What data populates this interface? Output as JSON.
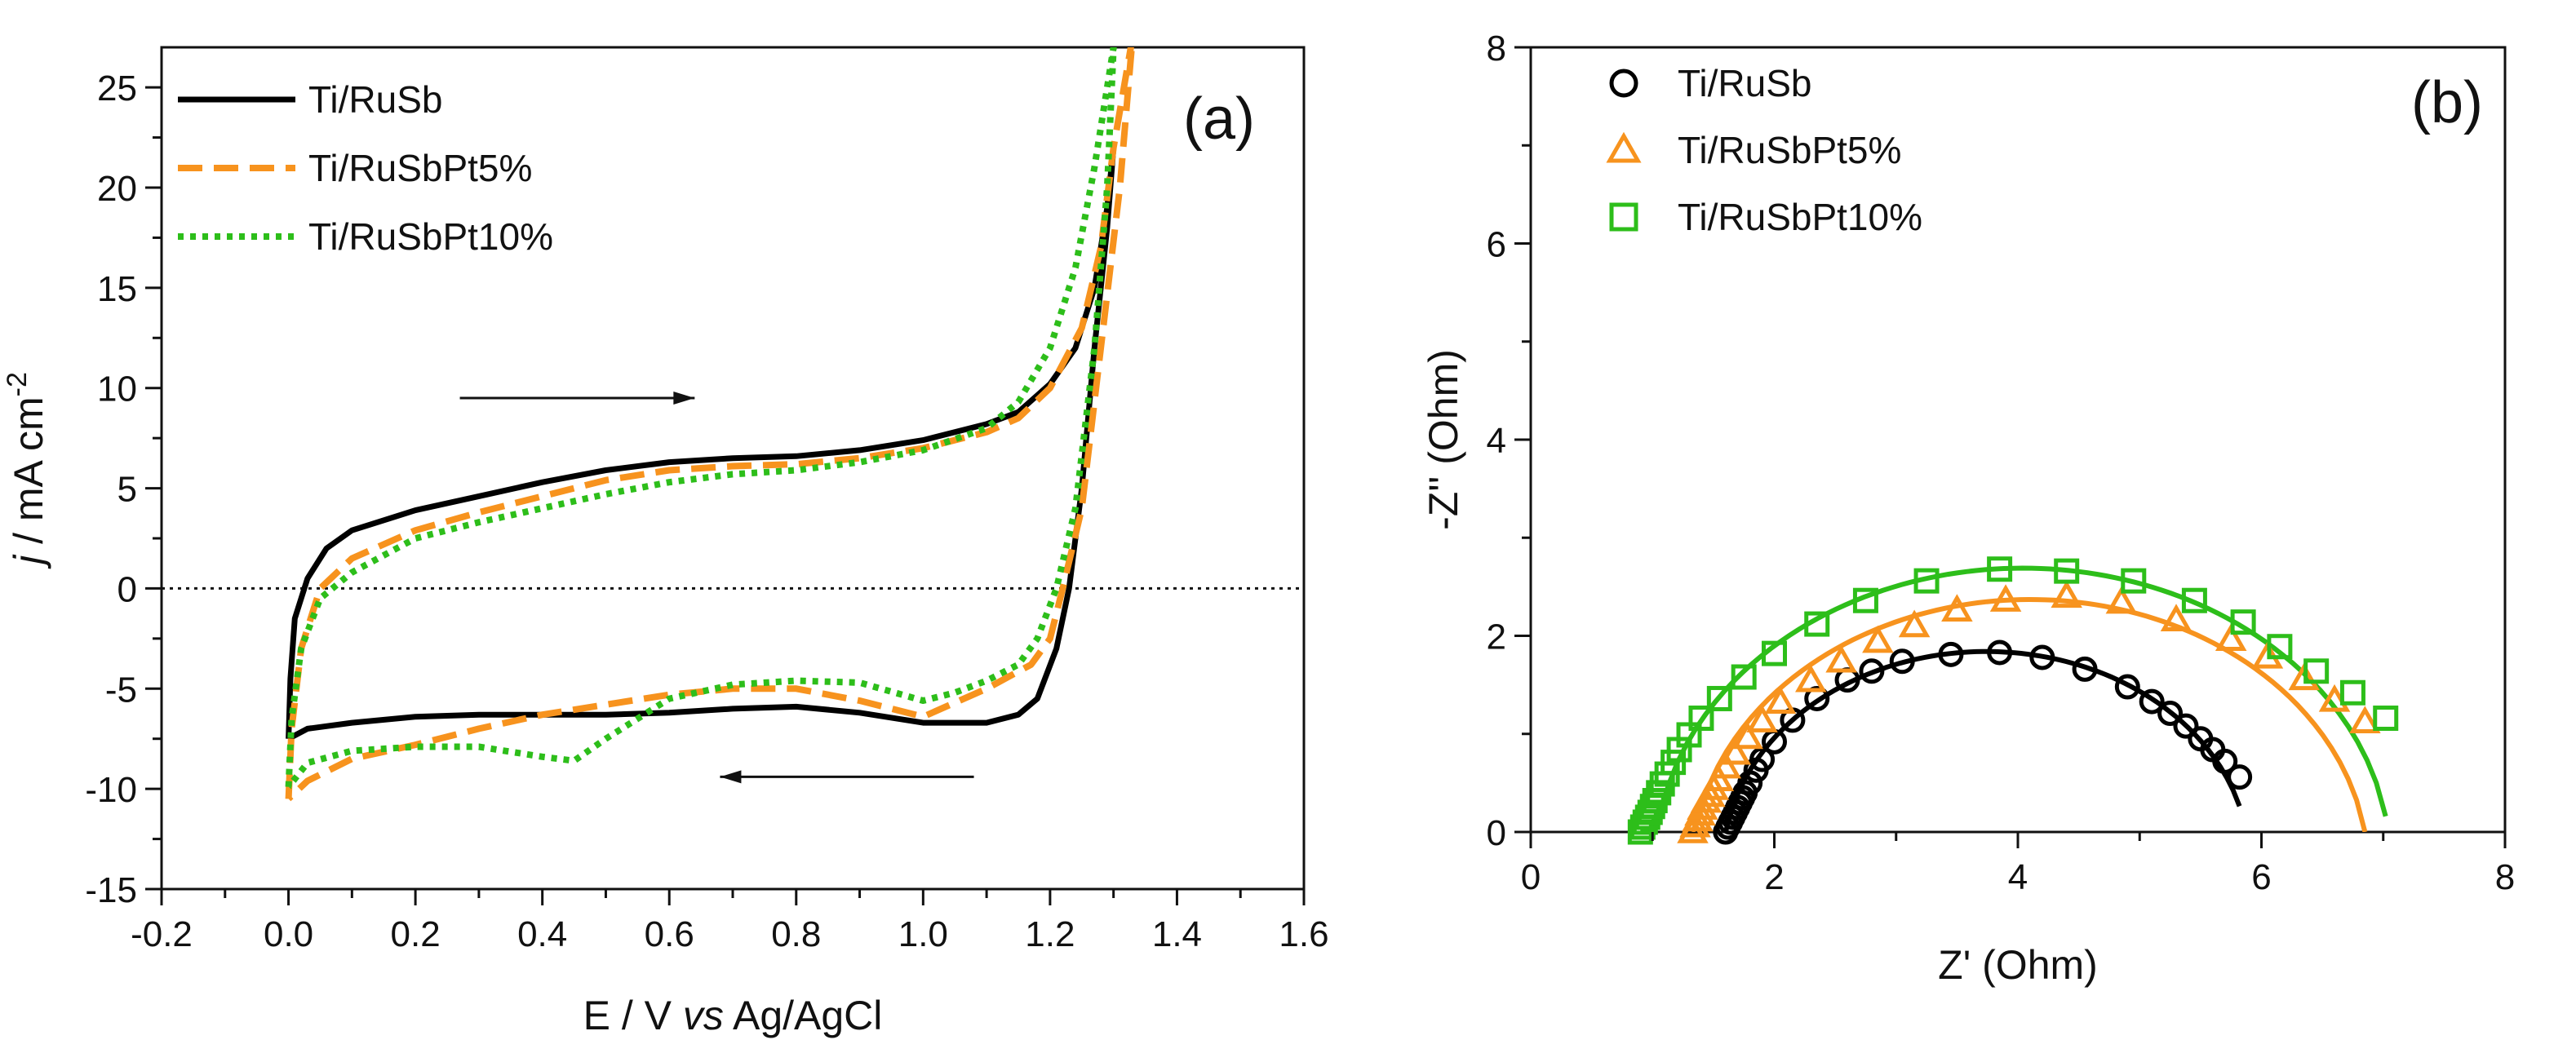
{
  "chart_data": [
    {
      "panel": "a",
      "panel_label": "(a)",
      "type": "line",
      "xlabel_parts": [
        "E / V ",
        "vs",
        " Ag/AgCl"
      ],
      "ylabel_parts": [
        "j",
        " / mA cm",
        "-2"
      ],
      "xlim": [
        -0.2,
        1.6
      ],
      "ylim": [
        -15,
        27
      ],
      "xticks": [
        -0.2,
        0.0,
        0.2,
        0.4,
        0.6,
        0.8,
        1.0,
        1.2,
        1.4,
        1.6
      ],
      "xtick_labels": [
        "-0.2",
        "0.0",
        "0.2",
        "0.4",
        "0.6",
        "0.8",
        "1.0",
        "1.2",
        "1.4",
        "1.6"
      ],
      "yticks": [
        -15,
        -10,
        -5,
        0,
        5,
        10,
        15,
        20,
        25
      ],
      "ytick_labels": [
        "-15",
        "-10",
        "-5",
        "0",
        "5",
        "10",
        "15",
        "20",
        "25"
      ],
      "zero_line": true,
      "arrows": [
        {
          "direction": "right",
          "from": [
            0.27,
            9.5
          ],
          "to": [
            0.64,
            9.5
          ]
        },
        {
          "direction": "left",
          "from": [
            1.08,
            -9.4
          ],
          "to": [
            0.68,
            -9.4
          ]
        }
      ],
      "legend_position": "top-left",
      "series": [
        {
          "name": "Ti/RuSb",
          "color": "#000000",
          "style": "solid",
          "points": [
            [
              0.0,
              -7.5
            ],
            [
              0.003,
              -4.5
            ],
            [
              0.01,
              -1.5
            ],
            [
              0.03,
              0.5
            ],
            [
              0.06,
              2.0
            ],
            [
              0.1,
              2.9
            ],
            [
              0.2,
              3.9
            ],
            [
              0.3,
              4.6
            ],
            [
              0.4,
              5.3
            ],
            [
              0.5,
              5.9
            ],
            [
              0.6,
              6.3
            ],
            [
              0.7,
              6.5
            ],
            [
              0.8,
              6.6
            ],
            [
              0.9,
              6.9
            ],
            [
              1.0,
              7.4
            ],
            [
              1.1,
              8.2
            ],
            [
              1.15,
              8.8
            ],
            [
              1.2,
              10.2
            ],
            [
              1.24,
              12.0
            ],
            [
              1.27,
              15.0
            ],
            [
              1.29,
              19.0
            ],
            [
              1.3,
              22.0
            ],
            [
              1.29,
              18.0
            ],
            [
              1.27,
              12.0
            ],
            [
              1.25,
              5.0
            ],
            [
              1.23,
              0.0
            ],
            [
              1.21,
              -3.0
            ],
            [
              1.18,
              -5.5
            ],
            [
              1.15,
              -6.3
            ],
            [
              1.1,
              -6.7
            ],
            [
              1.0,
              -6.7
            ],
            [
              0.9,
              -6.2
            ],
            [
              0.8,
              -5.9
            ],
            [
              0.7,
              -6.0
            ],
            [
              0.6,
              -6.2
            ],
            [
              0.5,
              -6.3
            ],
            [
              0.4,
              -6.3
            ],
            [
              0.3,
              -6.3
            ],
            [
              0.2,
              -6.4
            ],
            [
              0.1,
              -6.7
            ],
            [
              0.03,
              -7.0
            ],
            [
              0.0,
              -7.5
            ]
          ]
        },
        {
          "name": "Ti/RuSbPt5%",
          "color": "#F7931E",
          "style": "dashed",
          "points": [
            [
              0.0,
              -10.5
            ],
            [
              0.005,
              -7.0
            ],
            [
              0.02,
              -3.0
            ],
            [
              0.05,
              0.0
            ],
            [
              0.1,
              1.5
            ],
            [
              0.2,
              2.9
            ],
            [
              0.3,
              3.8
            ],
            [
              0.4,
              4.6
            ],
            [
              0.5,
              5.4
            ],
            [
              0.6,
              5.9
            ],
            [
              0.7,
              6.1
            ],
            [
              0.8,
              6.2
            ],
            [
              0.9,
              6.5
            ],
            [
              1.0,
              7.0
            ],
            [
              1.1,
              7.8
            ],
            [
              1.15,
              8.5
            ],
            [
              1.2,
              10.0
            ],
            [
              1.25,
              13.0
            ],
            [
              1.28,
              17.0
            ],
            [
              1.3,
              22.0
            ],
            [
              1.33,
              27.5
            ],
            [
              1.31,
              20.0
            ],
            [
              1.28,
              12.0
            ],
            [
              1.25,
              4.0
            ],
            [
              1.22,
              0.0
            ],
            [
              1.2,
              -2.5
            ],
            [
              1.17,
              -3.8
            ],
            [
              1.1,
              -5.0
            ],
            [
              1.0,
              -6.4
            ],
            [
              0.9,
              -5.6
            ],
            [
              0.8,
              -5.0
            ],
            [
              0.7,
              -5.0
            ],
            [
              0.6,
              -5.3
            ],
            [
              0.5,
              -5.8
            ],
            [
              0.4,
              -6.3
            ],
            [
              0.3,
              -7.0
            ],
            [
              0.2,
              -7.8
            ],
            [
              0.1,
              -8.5
            ],
            [
              0.03,
              -9.6
            ],
            [
              0.0,
              -10.5
            ]
          ]
        },
        {
          "name": "Ti/RuSbPt10%",
          "color": "#2DBE1A",
          "style": "dotted",
          "points": [
            [
              0.0,
              -9.9
            ],
            [
              0.005,
              -6.5
            ],
            [
              0.02,
              -3.0
            ],
            [
              0.05,
              -0.5
            ],
            [
              0.1,
              0.8
            ],
            [
              0.2,
              2.5
            ],
            [
              0.3,
              3.3
            ],
            [
              0.4,
              4.0
            ],
            [
              0.5,
              4.7
            ],
            [
              0.6,
              5.3
            ],
            [
              0.7,
              5.7
            ],
            [
              0.8,
              5.9
            ],
            [
              0.9,
              6.3
            ],
            [
              1.0,
              6.9
            ],
            [
              1.1,
              8.0
            ],
            [
              1.15,
              9.3
            ],
            [
              1.2,
              12.0
            ],
            [
              1.24,
              16.0
            ],
            [
              1.27,
              21.0
            ],
            [
              1.3,
              27.0
            ],
            [
              1.29,
              20.0
            ],
            [
              1.27,
              12.0
            ],
            [
              1.24,
              4.0
            ],
            [
              1.21,
              0.0
            ],
            [
              1.18,
              -2.5
            ],
            [
              1.15,
              -3.8
            ],
            [
              1.1,
              -4.6
            ],
            [
              1.05,
              -5.2
            ],
            [
              1.0,
              -5.6
            ],
            [
              0.9,
              -4.7
            ],
            [
              0.8,
              -4.6
            ],
            [
              0.7,
              -4.8
            ],
            [
              0.6,
              -5.5
            ],
            [
              0.5,
              -7.5
            ],
            [
              0.45,
              -8.6
            ],
            [
              0.4,
              -8.4
            ],
            [
              0.3,
              -7.9
            ],
            [
              0.2,
              -7.9
            ],
            [
              0.1,
              -8.1
            ],
            [
              0.03,
              -8.7
            ],
            [
              0.0,
              -9.9
            ]
          ]
        }
      ]
    },
    {
      "panel": "b",
      "panel_label": "(b)",
      "type": "scatter",
      "xlabel": "Z' (Ohm)",
      "ylabel": "-Z'' (Ohm)",
      "xlim": [
        0,
        8
      ],
      "ylim": [
        0,
        8
      ],
      "xticks": [
        0,
        2,
        4,
        6,
        8
      ],
      "xtick_labels": [
        "0",
        "2",
        "4",
        "6",
        "8"
      ],
      "yticks": [
        0,
        2,
        4,
        6,
        8
      ],
      "ytick_labels": [
        "0",
        "2",
        "4",
        "6",
        "8"
      ],
      "legend_position": "top-left",
      "series": [
        {
          "name": "Ti/RuSb",
          "color": "#000000",
          "marker": "circle",
          "fit": {
            "center": 3.74,
            "radius": 2.16,
            "offset": 0.32,
            "x_range": [
              1.6,
              5.82
            ]
          },
          "x": [
            1.6,
            1.62,
            1.64,
            1.66,
            1.68,
            1.7,
            1.72,
            1.74,
            1.76,
            1.8,
            1.85,
            1.9,
            2.0,
            2.15,
            2.35,
            2.6,
            2.8,
            3.05,
            3.45,
            3.85,
            4.2,
            4.55,
            4.9,
            5.1,
            5.25,
            5.38,
            5.5,
            5.6,
            5.7,
            5.82
          ],
          "y": [
            0.0,
            0.05,
            0.1,
            0.15,
            0.2,
            0.25,
            0.3,
            0.35,
            0.4,
            0.5,
            0.63,
            0.74,
            0.92,
            1.14,
            1.36,
            1.55,
            1.64,
            1.74,
            1.81,
            1.83,
            1.78,
            1.66,
            1.48,
            1.33,
            1.21,
            1.08,
            0.95,
            0.84,
            0.72,
            0.56
          ]
        },
        {
          "name": "Ti/RuSbPt5%",
          "color": "#F7931E",
          "marker": "triangle",
          "fit": {
            "center": 4.1,
            "radius": 2.78,
            "offset": 0.41,
            "x_range": [
              1.33,
              6.85
            ]
          },
          "x": [
            1.33,
            1.35,
            1.37,
            1.39,
            1.41,
            1.44,
            1.47,
            1.5,
            1.54,
            1.6,
            1.68,
            1.78,
            1.9,
            2.05,
            2.3,
            2.55,
            2.85,
            3.15,
            3.5,
            3.9,
            4.4,
            4.85,
            5.3,
            5.75,
            6.05,
            6.35,
            6.6,
            6.85
          ],
          "y": [
            0.0,
            0.06,
            0.12,
            0.18,
            0.24,
            0.31,
            0.37,
            0.44,
            0.53,
            0.66,
            0.8,
            0.96,
            1.13,
            1.32,
            1.54,
            1.74,
            1.94,
            2.1,
            2.26,
            2.36,
            2.4,
            2.34,
            2.16,
            1.96,
            1.78,
            1.56,
            1.34,
            1.12
          ]
        },
        {
          "name": "Ti/RuSbPt10%",
          "color": "#2DBE1A",
          "marker": "square",
          "fit": {
            "center": 4.04,
            "radius": 3.02,
            "offset": 0.33,
            "x_range": [
              0.9,
              7.02
            ]
          },
          "x": [
            0.9,
            0.92,
            0.94,
            0.96,
            0.98,
            1.0,
            1.02,
            1.05,
            1.08,
            1.12,
            1.17,
            1.22,
            1.3,
            1.4,
            1.55,
            1.75,
            2.0,
            2.35,
            2.75,
            3.25,
            3.85,
            4.4,
            4.95,
            5.45,
            5.85,
            6.15,
            6.45,
            6.75,
            7.02
          ],
          "y": [
            0.0,
            0.05,
            0.1,
            0.15,
            0.2,
            0.26,
            0.32,
            0.4,
            0.49,
            0.59,
            0.71,
            0.84,
            0.99,
            1.16,
            1.36,
            1.58,
            1.82,
            2.12,
            2.36,
            2.56,
            2.68,
            2.66,
            2.56,
            2.36,
            2.14,
            1.89,
            1.64,
            1.42,
            1.16
          ]
        }
      ]
    }
  ]
}
